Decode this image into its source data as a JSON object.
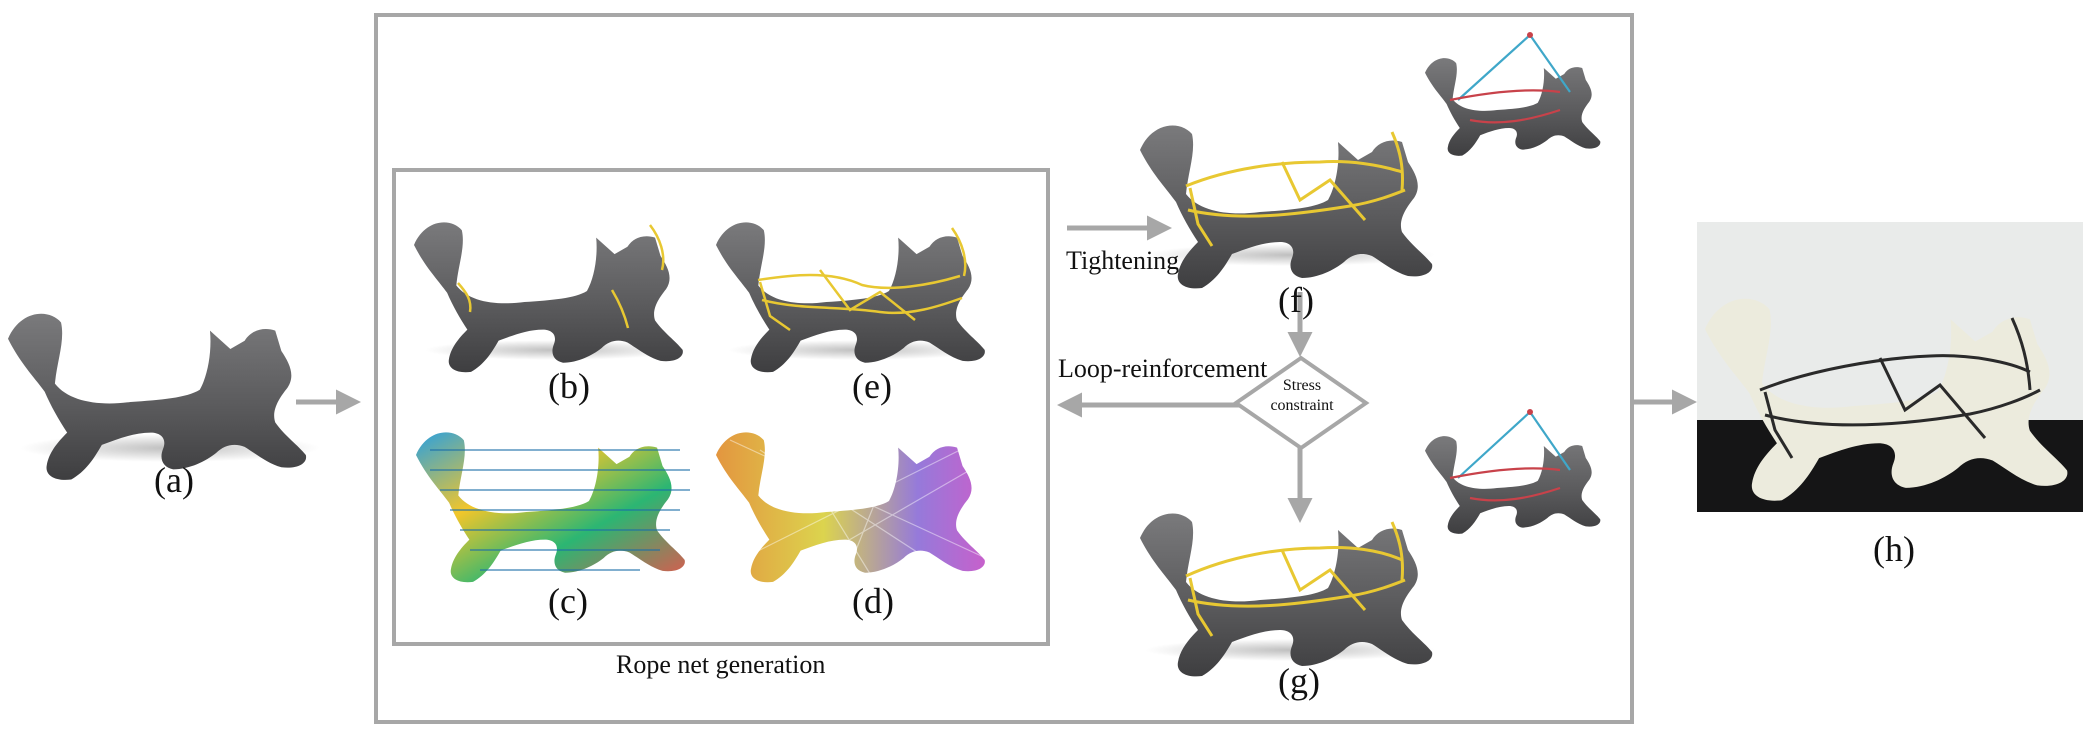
{
  "panels": {
    "a": "(a)",
    "b": "(b)",
    "c": "(c)",
    "d": "(d)",
    "e": "(e)",
    "f": "(f)",
    "g": "(g)",
    "h": "(h)"
  },
  "captions": {
    "rope_net_generation": "Rope net generation",
    "tightening": "Tightening",
    "loop_reinforcement": "Loop-reinforcement",
    "stress_constraint_line1": "Stress",
    "stress_constraint_line2": "constraint"
  },
  "colors": {
    "frame": "#a7a7a7",
    "arrow": "#a7a7a7",
    "model_body": "#5e5e60",
    "rope": "#e8c832",
    "cable_blue": "#3fa7c9",
    "cable_red": "#c8424a",
    "photo_bg": "#e9ebea",
    "photo_floor": "#151516",
    "photo_model": "#ecebdd"
  },
  "icons": {
    "model": "fox-sculpture-icon",
    "rope_net": "rope-net-icon"
  }
}
